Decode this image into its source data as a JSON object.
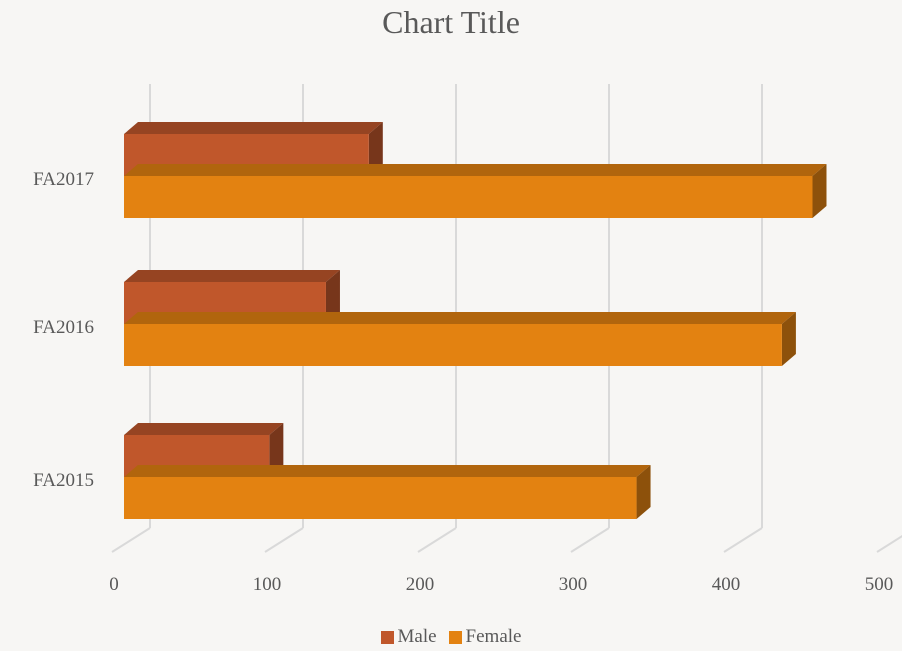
{
  "chart_data": {
    "type": "bar",
    "orientation": "horizontal",
    "three_d": true,
    "title": "Chart Title",
    "categories": [
      "FA2015",
      "FA2016",
      "FA2017"
    ],
    "series": [
      {
        "name": "Male",
        "values": [
          95,
          132,
          160
        ],
        "color": "#c0572b"
      },
      {
        "name": "Female",
        "values": [
          335,
          430,
          450
        ],
        "color": "#e38211"
      }
    ],
    "xlim": [
      0,
      500
    ],
    "x_ticks": [
      "0",
      "100",
      "200",
      "300",
      "400",
      "500"
    ],
    "grid": true,
    "legend_position": "bottom"
  }
}
